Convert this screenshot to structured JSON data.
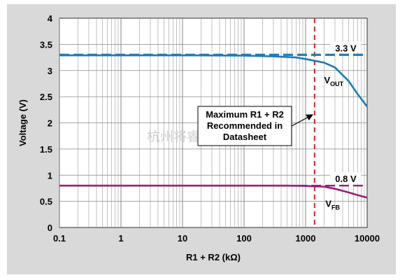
{
  "chart_data": {
    "type": "line",
    "x_scale": "log",
    "xlim": [
      0.1,
      10000
    ],
    "ylim": [
      0,
      4
    ],
    "x_ticks": [
      "0.1",
      "1",
      "10",
      "100",
      "1000",
      "10000"
    ],
    "y_ticks": [
      "0",
      "0.5",
      "1",
      "1.5",
      "2",
      "2.5",
      "3",
      "3.5",
      "4"
    ],
    "xlabel": "R1 + R2 (kΩ)",
    "ylabel": "Voltage (V)",
    "grid": true,
    "series": [
      {
        "name": "V_OUT",
        "label_main": "V",
        "label_sub": "OUT",
        "color": "#1f7ab8",
        "points": [
          [
            0.1,
            3.29
          ],
          [
            10,
            3.29
          ],
          [
            100,
            3.285
          ],
          [
            300,
            3.27
          ],
          [
            700,
            3.25
          ],
          [
            1000,
            3.22
          ],
          [
            1500,
            3.18
          ],
          [
            2000,
            3.15
          ],
          [
            3000,
            3.06
          ],
          [
            5000,
            2.8
          ],
          [
            7000,
            2.55
          ],
          [
            10000,
            2.31
          ]
        ]
      },
      {
        "name": "V_FB",
        "label_main": "V",
        "label_sub": "FB",
        "color": "#9b1f79",
        "points": [
          [
            0.1,
            0.8
          ],
          [
            100,
            0.8
          ],
          [
            500,
            0.8
          ],
          [
            1000,
            0.795
          ],
          [
            1500,
            0.785
          ],
          [
            2000,
            0.78
          ],
          [
            3000,
            0.74
          ],
          [
            5000,
            0.67
          ],
          [
            7000,
            0.62
          ],
          [
            10000,
            0.57
          ]
        ]
      }
    ],
    "reference_lines": [
      {
        "label": "3.3 V",
        "y": 3.3,
        "color": "#1f7ab8"
      },
      {
        "label": "0.8 V",
        "y": 0.8,
        "color": "#9b1f79"
      }
    ],
    "vertical_marker": {
      "x": 1400,
      "color": "#cc2233"
    },
    "annotation": {
      "lines": [
        "Maximum R1 + R2",
        "Recommended in",
        "Datasheet"
      ]
    },
    "watermark": "杭州将睿科技有限公司"
  }
}
